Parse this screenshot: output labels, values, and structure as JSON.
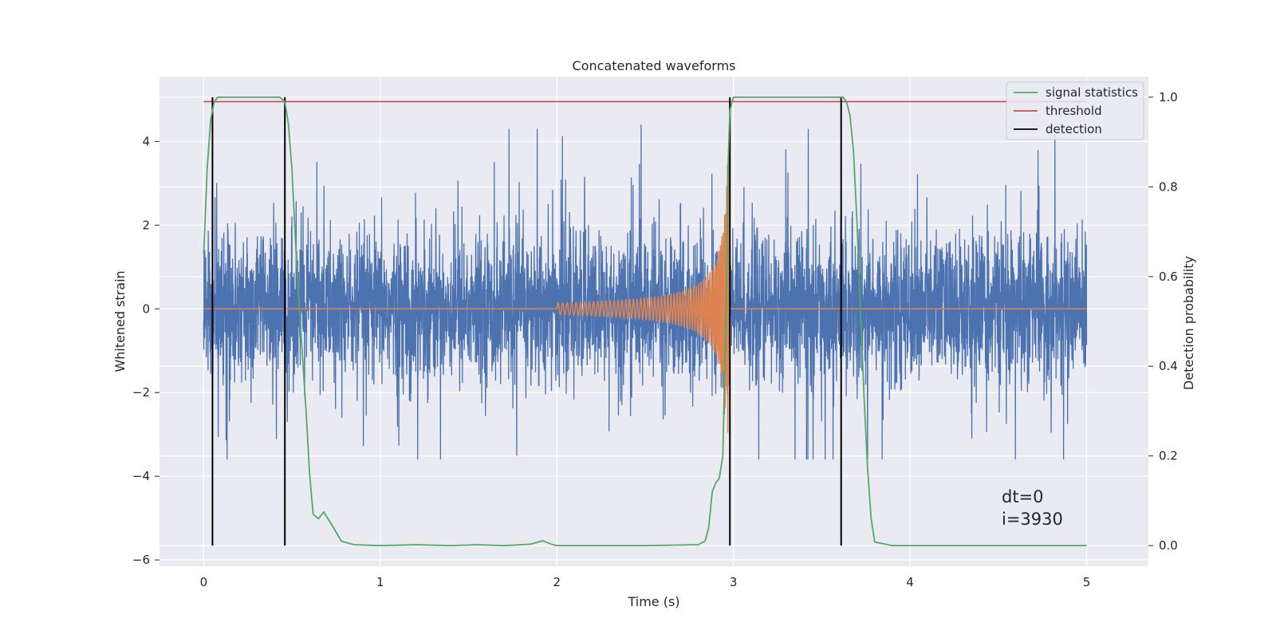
{
  "chart_data": {
    "type": "line",
    "title": "Concatenated waveforms",
    "xlabel": "Time (s)",
    "ylabel_left": "Whitened strain",
    "ylabel_right": "Detection probability",
    "xlim": [
      -0.25,
      5.35
    ],
    "ylim_left": [
      -6.15,
      5.55
    ],
    "ylim_right": [
      -0.046,
      1.046
    ],
    "x_ticks": [
      0,
      1,
      2,
      3,
      4,
      5
    ],
    "y_ticks_left": [
      -6,
      -4,
      -2,
      0,
      2,
      4
    ],
    "y_ticks_right": [
      0.0,
      0.2,
      0.4,
      0.6,
      0.8,
      1.0
    ],
    "x_tick_labels": [
      "0",
      "1",
      "2",
      "3",
      "4",
      "5"
    ],
    "y_tick_labels_left": [
      "−6",
      "−4",
      "−2",
      "0",
      "2",
      "4"
    ],
    "y_tick_labels_right": [
      "0.0",
      "0.2",
      "0.4",
      "0.6",
      "0.8",
      "1.0"
    ],
    "grid": true,
    "legend_position": "top-right",
    "colors": {
      "strain": "#4c72b0",
      "template": "#dd8452",
      "signal_statistics": "#55a868",
      "threshold": "#c44e52",
      "detection": "#000000",
      "axes_background": "#eaeaf2",
      "grid": "#ffffff"
    },
    "series": [
      {
        "name": "signal statistics",
        "axis": "right",
        "x": [
          0.0,
          0.02,
          0.04,
          0.06,
          0.08,
          0.1,
          0.3,
          0.43,
          0.46,
          0.48,
          0.5,
          0.52,
          0.55,
          0.58,
          0.6,
          0.62,
          0.65,
          0.68,
          0.72,
          0.78,
          0.85,
          1.0,
          1.2,
          1.4,
          1.55,
          1.7,
          1.85,
          1.92,
          1.97,
          2.0,
          2.5,
          2.8,
          2.84,
          2.86,
          2.88,
          2.9,
          2.92,
          2.94,
          2.96,
          2.97,
          2.98,
          3.0,
          3.2,
          3.5,
          3.62,
          3.64,
          3.66,
          3.68,
          3.7,
          3.72,
          3.74,
          3.76,
          3.78,
          3.8,
          3.9,
          5.0
        ],
        "y": [
          0.65,
          0.84,
          0.95,
          0.99,
          1.0,
          1.0,
          1.0,
          1.0,
          0.99,
          0.94,
          0.84,
          0.68,
          0.48,
          0.3,
          0.16,
          0.07,
          0.06,
          0.075,
          0.05,
          0.01,
          0.002,
          0.0,
          0.002,
          0.0,
          0.002,
          0.0,
          0.003,
          0.011,
          0.003,
          0.0,
          0.0,
          0.002,
          0.01,
          0.04,
          0.12,
          0.14,
          0.15,
          0.2,
          0.55,
          0.85,
          0.97,
          1.0,
          1.0,
          1.0,
          1.0,
          0.99,
          0.96,
          0.88,
          0.72,
          0.52,
          0.33,
          0.17,
          0.06,
          0.008,
          0.0,
          0.0
        ]
      },
      {
        "name": "threshold",
        "axis": "right",
        "x": [
          0.0,
          5.0
        ],
        "y": [
          0.99,
          0.99
        ]
      },
      {
        "name": "detection",
        "axis": "right",
        "type": "vlines",
        "x": [
          0.05,
          0.46,
          2.98,
          3.61
        ],
        "ymin": 0.0,
        "ymax": 1.0
      }
    ],
    "annotations": [
      "dt=0",
      "i=3930"
    ]
  }
}
